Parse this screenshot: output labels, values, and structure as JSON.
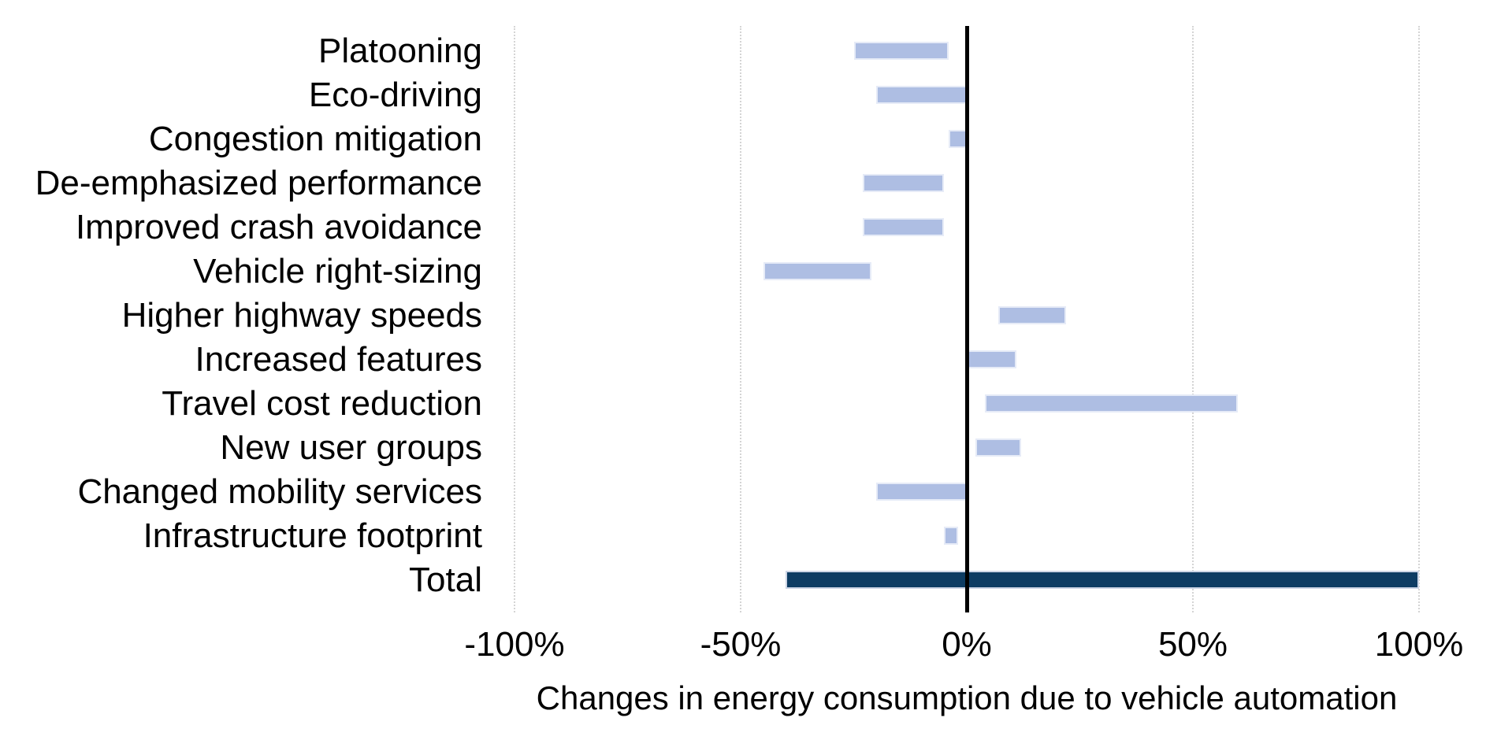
{
  "chart_data": {
    "type": "bar",
    "subtype": "horizontal-floating-range",
    "title": "",
    "xlabel": "Changes in energy consumption due to vehicle automation",
    "x_tick_labels": [
      "-100%",
      "-50%",
      "0%",
      "50%",
      "100%"
    ],
    "x_tick_values": [
      -100,
      -50,
      0,
      50,
      100
    ],
    "xlim": [
      -100,
      100
    ],
    "grid": "vertical-dotted",
    "legend": "none",
    "categories": [
      "Platooning",
      "Eco-driving",
      "Congestion mitigation",
      "De-emphasized performance",
      "Improved crash avoidance",
      "Vehicle right-sizing",
      "Higher highway speeds",
      "Increased features",
      "Travel cost reduction",
      "New user groups",
      "Changed mobility services",
      "Infrastructure footprint",
      "Total"
    ],
    "ranges_pct": [
      [
        -25,
        -4
      ],
      [
        -20,
        0
      ],
      [
        -4,
        0
      ],
      [
        -23,
        -5
      ],
      [
        -23,
        -5
      ],
      [
        -45,
        -21
      ],
      [
        7,
        22
      ],
      [
        0,
        11
      ],
      [
        4,
        60
      ],
      [
        2,
        12
      ],
      [
        -20,
        0
      ],
      [
        -5,
        -2
      ],
      [
        -40,
        100
      ]
    ],
    "total_category": "Total",
    "colors": {
      "range_bar": "#aebee3",
      "range_bar_border": "#e6ebf7",
      "total_bar": "#0d3c63",
      "total_bar_border": "#ccd5e5",
      "gridline": "#d4d4d4",
      "zero_line": "#000000",
      "text": "#000000",
      "background": "#ffffff"
    }
  }
}
